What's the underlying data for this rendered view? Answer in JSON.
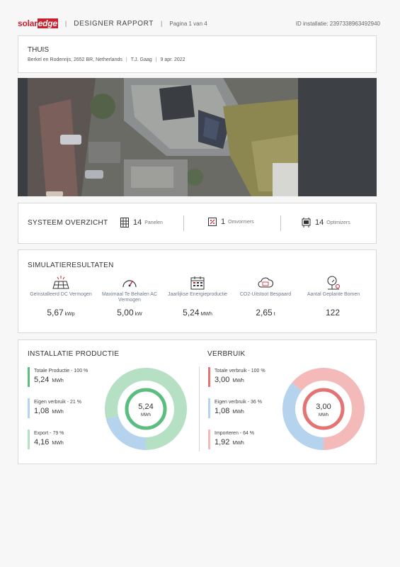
{
  "header": {
    "logo_part1": "solar",
    "logo_part2": "edge",
    "title": "DESIGNER RAPPORT",
    "page": "Pagina 1 van 4",
    "installation_id": "ID installatie: 2397338963492940"
  },
  "site": {
    "name": "THUIS",
    "address": "Berkel en Rodenrijs, 2652 BR, Netherlands",
    "designer": "T.J. Gaag",
    "date": "9 apr. 2022"
  },
  "overview": {
    "title": "SYSTEEM OVERZICHT",
    "items": [
      {
        "count": "14",
        "label": "Panelen",
        "icon": "panel-grid-icon"
      },
      {
        "count": "1",
        "label": "Omvormers",
        "icon": "inverter-icon"
      },
      {
        "count": "14",
        "label": "Optimizers",
        "icon": "optimizer-icon"
      }
    ]
  },
  "simulation": {
    "title": "SIMULATIERESULTATEN",
    "items": [
      {
        "label": "Geïnstalleerd DC Vermogen",
        "value": "5,67",
        "unit": "kWp",
        "icon": "solar-panel-icon"
      },
      {
        "label": "Maximaal Te Behalen AC Vermogen",
        "value": "5,00",
        "unit": "kW",
        "icon": "speedometer-icon"
      },
      {
        "label": "Jaarlijkse Energieproductie",
        "value": "5,24",
        "unit": "MWh",
        "icon": "calendar-icon"
      },
      {
        "label": "CO2-Uitstoot Bespaard",
        "value": "2,65",
        "unit": "t",
        "icon": "cloud-co2-icon"
      },
      {
        "label": "Aantal Geplante Bomen",
        "value": "122",
        "unit": "",
        "icon": "tree-icon"
      }
    ]
  },
  "production": {
    "title": "INSTALLATIE PRODUCTIE",
    "center_value": "5,24",
    "center_unit": "MWh",
    "items": [
      {
        "label": "Totale Productie - 100 %",
        "value": "5,24",
        "unit": "MWh",
        "color": "#5bbd80"
      },
      {
        "label": "Eigen verbruik - 21 %",
        "value": "1,08",
        "unit": "MWh",
        "color": "#b6d3ee"
      },
      {
        "label": "Export - 79 %",
        "value": "4,16",
        "unit": "MWh",
        "color": "#b5e0c3"
      }
    ],
    "donut": [
      {
        "name": "Eigen verbruik",
        "percent": 21,
        "color": "#b6d3ee"
      },
      {
        "name": "Export",
        "percent": 79,
        "color": "#b5e0c3"
      }
    ],
    "ring_color": "#5bbd80"
  },
  "consumption": {
    "title": "VERBRUIK",
    "center_value": "3,00",
    "center_unit": "MWh",
    "items": [
      {
        "label": "Totale verbruik - 100 %",
        "value": "3,00",
        "unit": "MWh",
        "color": "#e47373"
      },
      {
        "label": "Eigen verbruik - 36 %",
        "value": "1,08",
        "unit": "MWh",
        "color": "#b6d3ee"
      },
      {
        "label": "Importeren - 64 %",
        "value": "1,92",
        "unit": "MWh",
        "color": "#f4b9b9"
      }
    ],
    "donut": [
      {
        "name": "Eigen verbruik",
        "percent": 36,
        "color": "#b6d3ee"
      },
      {
        "name": "Importeren",
        "percent": 64,
        "color": "#f4b9b9"
      }
    ],
    "ring_color": "#e47373"
  }
}
